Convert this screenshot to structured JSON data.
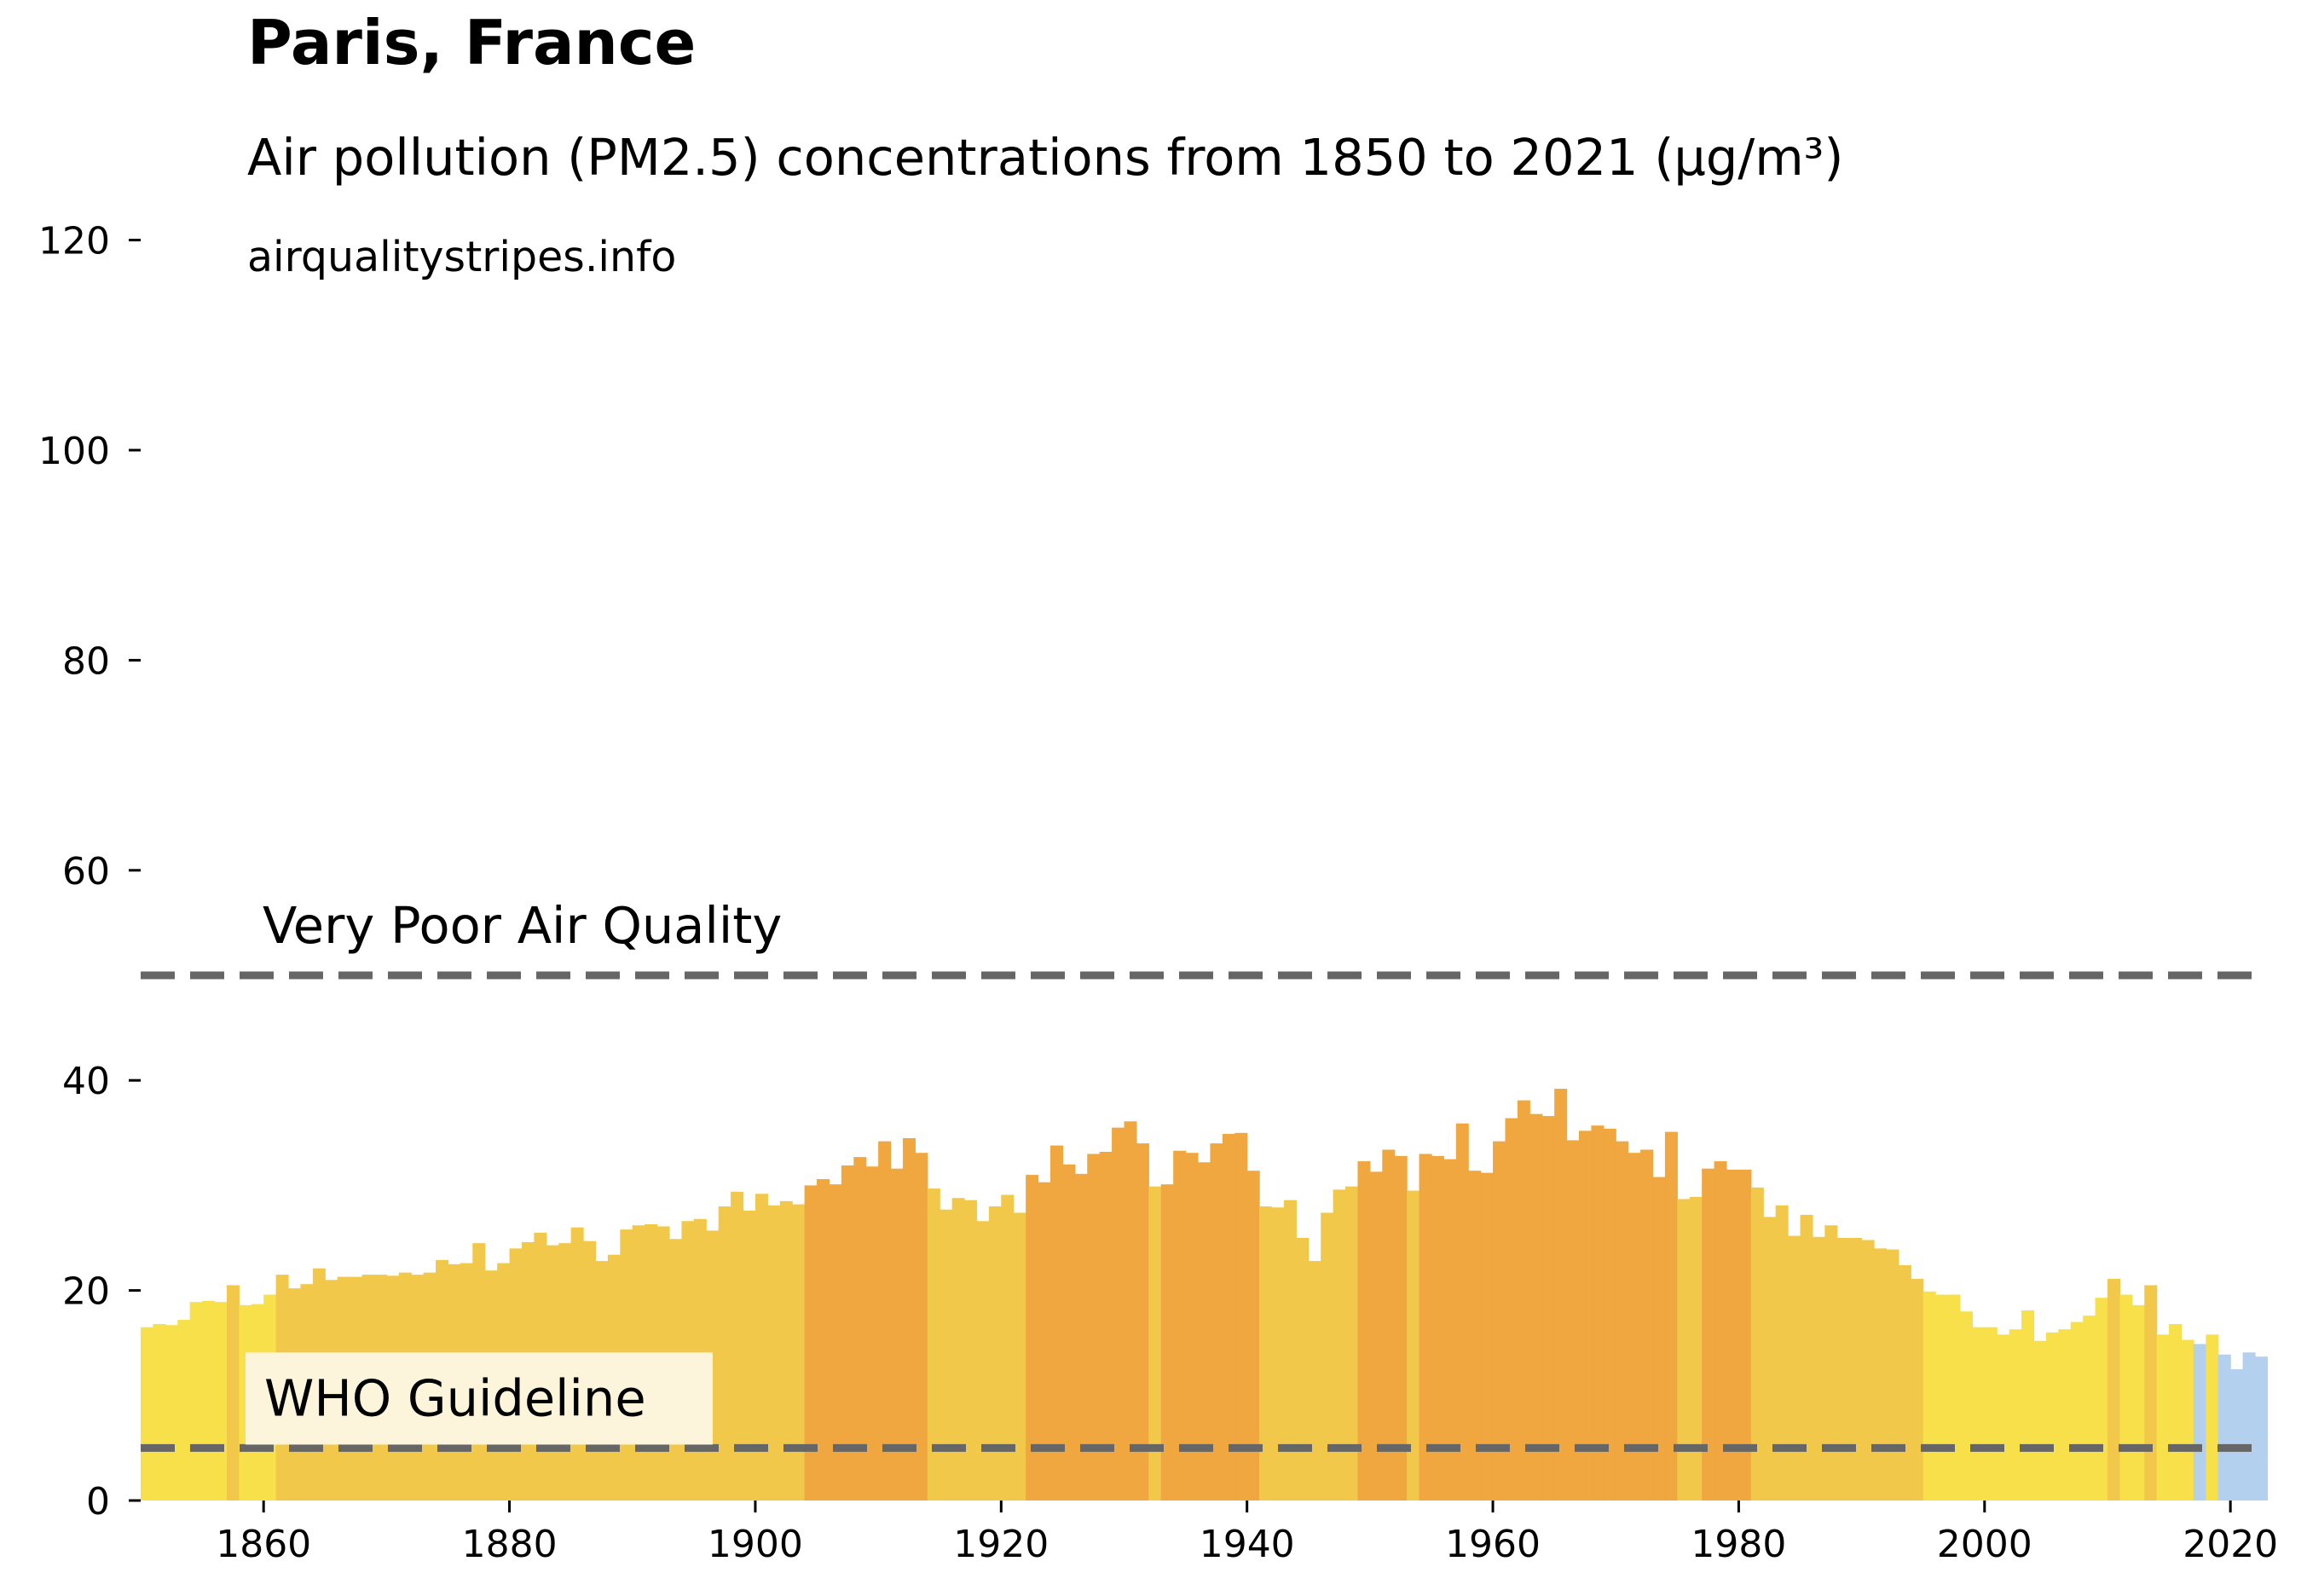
{
  "title": "Paris, France",
  "subtitle": "Air pollution (PM2.5) concentrations from 1850 to 2021 (µg/m³)",
  "source": "airqualitystripes.info",
  "colors": {
    "band_under_20": "#f7e04a",
    "band_20_to_30": "#f2c84b",
    "band_over_30": "#f0a740",
    "band_under_15": "#b3d0ef",
    "reference_line": "#666666",
    "who_label_bg": "#fdf4dc"
  },
  "reference_lines": [
    {
      "name": "very-poor",
      "label": "Very Poor Air Quality",
      "value": 50
    },
    {
      "name": "who",
      "label": "WHO Guideline",
      "value": 5
    }
  ],
  "chart_data": {
    "type": "bar",
    "title": "Paris, France",
    "subtitle": "Air pollution (PM2.5) concentrations from 1850 to 2021 (µg/m³)",
    "xlabel": "",
    "ylabel": "",
    "xlim": [
      1850,
      2022
    ],
    "ylim": [
      0,
      125
    ],
    "x_ticks": [
      1860,
      1880,
      1900,
      1920,
      1940,
      1960,
      1980,
      2000,
      2020
    ],
    "y_ticks": [
      0,
      20,
      40,
      60,
      80,
      100,
      120
    ],
    "grid": false,
    "x_start": 1850,
    "values": [
      16.5,
      16.8,
      16.7,
      17.2,
      18.9,
      19.0,
      18.9,
      20.5,
      18.6,
      18.7,
      19.6,
      21.5,
      20.2,
      20.6,
      22.1,
      21.0,
      21.3,
      21.3,
      21.5,
      21.5,
      21.4,
      21.7,
      21.5,
      21.7,
      22.9,
      22.5,
      22.6,
      24.5,
      21.9,
      22.6,
      24.0,
      24.6,
      25.5,
      24.3,
      24.5,
      26.0,
      24.7,
      22.8,
      23.4,
      25.8,
      26.2,
      26.3,
      26.1,
      24.9,
      26.6,
      26.8,
      25.7,
      28.0,
      29.4,
      27.6,
      29.2,
      28.1,
      28.5,
      28.2,
      30.0,
      30.6,
      30.1,
      31.9,
      32.7,
      31.8,
      34.2,
      31.6,
      34.5,
      33.1,
      29.7,
      27.7,
      28.8,
      28.6,
      26.6,
      28.0,
      29.1,
      27.4,
      31.0,
      30.3,
      33.8,
      32.0,
      31.1,
      33.0,
      33.2,
      35.5,
      36.1,
      34.0,
      29.9,
      30.1,
      33.3,
      33.1,
      32.2,
      34.0,
      34.9,
      35.0,
      31.4,
      28.0,
      27.9,
      28.6,
      25.0,
      22.8,
      27.4,
      29.6,
      29.9,
      32.3,
      31.3,
      33.4,
      32.8,
      29.5,
      33.0,
      32.8,
      32.5,
      35.9,
      31.4,
      31.2,
      34.2,
      36.4,
      38.1,
      36.8,
      36.6,
      39.2,
      34.3,
      35.2,
      35.7,
      35.4,
      34.2,
      33.1,
      33.4,
      30.8,
      35.1,
      28.7,
      28.9,
      31.6,
      32.3,
      31.5,
      31.5,
      29.8,
      27.0,
      28.1,
      25.2,
      27.2,
      25.1,
      26.2,
      25.0,
      25.0,
      24.8,
      24.0,
      23.9,
      22.4,
      21.1,
      19.9,
      19.6,
      19.6,
      18.0,
      16.5,
      16.5,
      15.8,
      16.3,
      18.1,
      15.2,
      16.0,
      16.3,
      17.0,
      17.6,
      19.3,
      21.1,
      19.6,
      18.6,
      20.5,
      15.8,
      16.8,
      15.3,
      14.9,
      15.8,
      13.9,
      12.5,
      14.1,
      13.7
    ]
  }
}
